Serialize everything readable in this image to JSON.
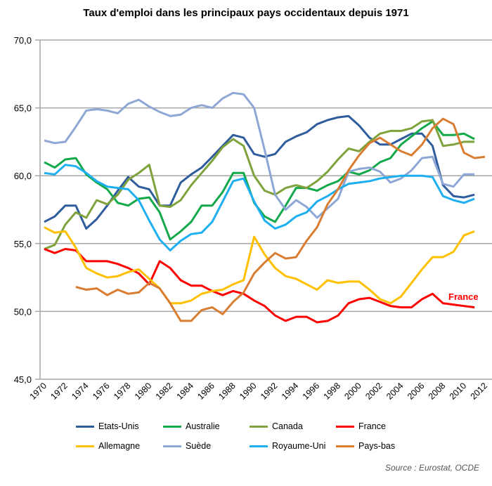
{
  "chart_data": {
    "type": "line",
    "title": "Taux d'emploi dans les principaux pays occidentaux depuis 1971",
    "xlabel": "",
    "ylabel": "",
    "x": [
      1970,
      1971,
      1972,
      1973,
      1974,
      1975,
      1976,
      1977,
      1978,
      1979,
      1980,
      1981,
      1982,
      1983,
      1984,
      1985,
      1986,
      1987,
      1988,
      1989,
      1990,
      1991,
      1992,
      1993,
      1994,
      1995,
      1996,
      1997,
      1998,
      1999,
      2000,
      2001,
      2002,
      2003,
      2004,
      2005,
      2006,
      2007,
      2008,
      2009,
      2010,
      2011,
      2012
    ],
    "x_tick_labels": [
      "1970",
      "1972",
      "1974",
      "1976",
      "1978",
      "1980",
      "1982",
      "1984",
      "1986",
      "1988",
      "1990",
      "1992",
      "1994",
      "1996",
      "1998",
      "2000",
      "2002",
      "2004",
      "2006",
      "2008",
      "2010",
      "2012"
    ],
    "ylim": [
      45,
      70
    ],
    "y_tick_labels": [
      "45,0",
      "50,0",
      "55,0",
      "60,0",
      "65,0",
      "70,0"
    ],
    "grid": true,
    "legend_position": "bottom",
    "annotation": "France",
    "source": "Source : Eurostat, OCDE",
    "series": [
      {
        "name": "Etats-Unis",
        "color": "#2f5c9c",
        "values": [
          56.6,
          57.0,
          57.8,
          57.8,
          56.1,
          56.8,
          57.8,
          58.9,
          59.9,
          59.2,
          59.0,
          57.8,
          57.8,
          59.5,
          60.1,
          60.6,
          61.4,
          62.2,
          63.0,
          62.8,
          61.6,
          61.4,
          61.6,
          62.5,
          62.9,
          63.2,
          63.8,
          64.1,
          64.3,
          64.4,
          63.7,
          62.8,
          62.3,
          62.3,
          62.7,
          63.1,
          63.1,
          62.2,
          59.3,
          58.5,
          58.4,
          58.6,
          null
        ]
      },
      {
        "name": "Australie",
        "color": "#13a94a",
        "values": [
          61.0,
          60.6,
          61.2,
          61.3,
          60.1,
          59.5,
          59.0,
          58.0,
          57.8,
          58.3,
          58.4,
          57.3,
          55.3,
          55.9,
          56.6,
          57.8,
          57.8,
          58.8,
          60.2,
          60.2,
          58.0,
          57.0,
          56.6,
          57.8,
          59.1,
          59.1,
          58.9,
          59.3,
          59.6,
          60.3,
          60.1,
          60.4,
          61.0,
          61.3,
          62.3,
          62.9,
          63.5,
          64.0,
          63.0,
          63.0,
          63.1,
          62.7,
          null
        ]
      },
      {
        "name": "Canada",
        "color": "#7fa23c",
        "values": [
          54.6,
          54.9,
          56.4,
          57.3,
          56.9,
          58.2,
          57.9,
          58.6,
          59.7,
          60.2,
          60.8,
          57.8,
          57.7,
          58.2,
          59.3,
          60.2,
          61.1,
          62.1,
          62.7,
          62.2,
          60.0,
          58.9,
          58.6,
          59.1,
          59.3,
          59.1,
          59.6,
          60.3,
          61.2,
          62.0,
          61.8,
          62.5,
          63.1,
          63.3,
          63.3,
          63.5,
          64.0,
          64.1,
          62.2,
          62.3,
          62.5,
          62.5,
          null
        ]
      },
      {
        "name": "France",
        "color": "#ff0000",
        "values": [
          54.6,
          54.3,
          54.6,
          54.5,
          53.7,
          53.7,
          53.7,
          53.5,
          53.2,
          52.8,
          52.0,
          53.7,
          53.2,
          52.3,
          51.9,
          51.9,
          51.5,
          51.2,
          51.5,
          51.3,
          50.8,
          50.4,
          49.7,
          49.3,
          49.6,
          49.6,
          49.2,
          49.3,
          49.7,
          50.6,
          50.9,
          51.0,
          50.7,
          50.4,
          50.3,
          50.3,
          50.9,
          51.3,
          50.6,
          50.5,
          50.4,
          50.3,
          null
        ]
      },
      {
        "name": "Allemagne",
        "color": "#ffc000",
        "values": [
          56.2,
          55.8,
          55.9,
          54.7,
          53.2,
          52.8,
          52.5,
          52.6,
          52.9,
          53.1,
          52.4,
          51.7,
          50.6,
          50.6,
          50.8,
          51.3,
          51.5,
          51.6,
          52.0,
          52.3,
          55.5,
          54.2,
          53.2,
          52.6,
          52.4,
          52.0,
          51.6,
          52.3,
          52.1,
          52.2,
          52.2,
          51.6,
          50.9,
          50.6,
          51.1,
          52.1,
          53.1,
          54.0,
          54.0,
          54.4,
          55.6,
          55.9,
          null
        ]
      },
      {
        "name": "Suède",
        "color": "#8ea7d5",
        "values": [
          62.6,
          62.4,
          62.5,
          63.6,
          64.8,
          64.9,
          64.8,
          64.6,
          65.3,
          65.6,
          65.1,
          64.7,
          64.4,
          64.5,
          65.0,
          65.2,
          65.0,
          65.7,
          66.1,
          66.0,
          65.0,
          61.9,
          58.6,
          57.5,
          58.2,
          57.7,
          56.9,
          57.6,
          58.3,
          60.3,
          60.5,
          60.6,
          60.3,
          59.5,
          59.8,
          60.4,
          61.3,
          61.4,
          59.4,
          59.2,
          60.1,
          60.1,
          null
        ]
      },
      {
        "name": "Royaume-Uni",
        "color": "#1eaff0",
        "values": [
          60.2,
          60.1,
          60.8,
          60.7,
          60.2,
          59.6,
          59.2,
          59.1,
          59.0,
          58.2,
          56.7,
          55.3,
          54.5,
          55.2,
          55.7,
          55.8,
          56.6,
          58.1,
          59.6,
          59.8,
          58.1,
          56.7,
          56.1,
          56.4,
          57.0,
          57.3,
          58.1,
          58.5,
          59.0,
          59.4,
          59.5,
          59.6,
          59.8,
          59.9,
          60.0,
          60.0,
          60.0,
          59.9,
          58.5,
          58.2,
          58.0,
          58.3,
          null
        ]
      },
      {
        "name": "Pays-bas",
        "color": "#d97d32",
        "values": [
          null,
          null,
          null,
          51.8,
          51.6,
          51.7,
          51.2,
          51.6,
          51.3,
          51.4,
          52.1,
          51.7,
          50.6,
          49.3,
          49.3,
          50.1,
          50.3,
          49.8,
          50.7,
          51.4,
          52.8,
          53.6,
          54.3,
          53.9,
          54.0,
          55.2,
          56.2,
          57.9,
          59.0,
          60.4,
          61.5,
          62.4,
          62.8,
          62.3,
          61.8,
          61.5,
          62.3,
          63.5,
          64.2,
          63.8,
          61.7,
          61.3,
          61.4
        ]
      }
    ]
  }
}
